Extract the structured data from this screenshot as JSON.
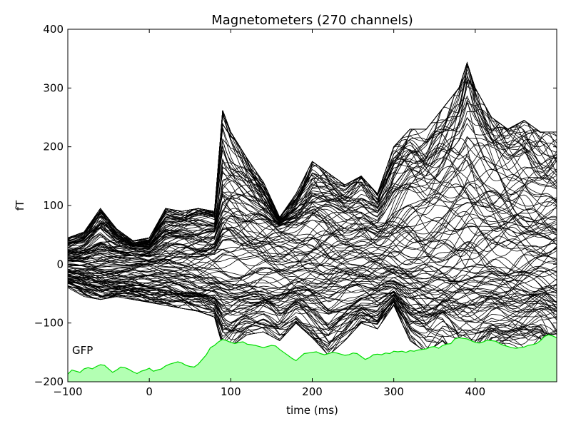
{
  "chart_data": {
    "type": "line",
    "title": "Magnetometers (270 channels)",
    "xlabel": "time (ms)",
    "ylabel": "fT",
    "xlim": [
      -100,
      500
    ],
    "ylim": [
      -200,
      400
    ],
    "xticks": [
      -100,
      0,
      100,
      200,
      300,
      400
    ],
    "yticks": [
      -200,
      -100,
      0,
      100,
      200,
      300,
      400
    ],
    "xtick_labels": [
      "−100",
      "0",
      "100",
      "200",
      "300",
      "400"
    ],
    "ytick_labels": [
      "−200",
      "−100",
      "0",
      "100",
      "200",
      "300",
      "400"
    ],
    "grid": false,
    "channel_count": 270,
    "channel_color": "#000000",
    "envelope": {
      "x": [
        -100,
        -80,
        -60,
        -40,
        -20,
        0,
        20,
        40,
        60,
        80,
        90,
        100,
        120,
        140,
        160,
        180,
        200,
        220,
        240,
        260,
        280,
        300,
        320,
        340,
        360,
        380,
        390,
        400,
        420,
        440,
        460,
        480,
        500
      ],
      "upper": [
        45,
        55,
        95,
        60,
        40,
        45,
        95,
        90,
        95,
        90,
        262,
        225,
        180,
        140,
        80,
        120,
        175,
        155,
        135,
        150,
        120,
        200,
        230,
        230,
        265,
        300,
        343,
        300,
        250,
        230,
        245,
        225,
        225
      ],
      "lower": [
        -40,
        -55,
        -60,
        -55,
        -60,
        -65,
        -70,
        -75,
        -80,
        -90,
        -140,
        -140,
        -120,
        -115,
        -130,
        -100,
        -125,
        -155,
        -130,
        -100,
        -110,
        -70,
        -130,
        -150,
        -130,
        -165,
        -165,
        -160,
        -135,
        -145,
        -150,
        -140,
        -170
      ],
      "mid_upper": [
        20,
        25,
        40,
        30,
        25,
        25,
        45,
        50,
        50,
        55,
        95,
        95,
        80,
        75,
        65,
        70,
        85,
        80,
        75,
        80,
        70,
        90,
        100,
        100,
        110,
        120,
        125,
        120,
        110,
        100,
        95,
        90,
        85
      ],
      "mid_lower": [
        -20,
        -25,
        -30,
        -30,
        -30,
        -35,
        -35,
        -40,
        -45,
        -50,
        -60,
        -65,
        -60,
        -55,
        -60,
        -55,
        -65,
        -75,
        -65,
        -55,
        -60,
        -45,
        -65,
        -75,
        -70,
        -80,
        -80,
        -80,
        -70,
        -75,
        -70,
        -65,
        -70
      ]
    },
    "gfp": {
      "label": "GFP",
      "color": "#00dd00",
      "fill": "#b3ffb3",
      "x": [
        -100,
        -95,
        -90,
        -85,
        -80,
        -75,
        -70,
        -65,
        -60,
        -55,
        -50,
        -45,
        -40,
        -35,
        -30,
        -25,
        -20,
        -15,
        -10,
        -5,
        0,
        5,
        10,
        15,
        20,
        25,
        30,
        35,
        40,
        45,
        50,
        55,
        60,
        65,
        70,
        75,
        80,
        85,
        90,
        95,
        100,
        105,
        110,
        115,
        120,
        125,
        130,
        135,
        140,
        145,
        150,
        155,
        160,
        165,
        170,
        175,
        180,
        185,
        190,
        195,
        200,
        205,
        210,
        215,
        220,
        225,
        230,
        235,
        240,
        245,
        250,
        255,
        260,
        265,
        270,
        275,
        280,
        285,
        290,
        295,
        300,
        305,
        310,
        315,
        320,
        325,
        330,
        335,
        340,
        345,
        350,
        355,
        360,
        365,
        370,
        375,
        380,
        385,
        390,
        395,
        400,
        405,
        410,
        415,
        420,
        425,
        430,
        435,
        440,
        445,
        450,
        455,
        460,
        465,
        470,
        475,
        480,
        485,
        490,
        495,
        500
      ],
      "values": [
        13,
        20,
        18,
        16,
        22,
        24,
        22,
        26,
        29,
        28,
        22,
        16,
        20,
        25,
        24,
        21,
        17,
        14,
        18,
        20,
        23,
        18,
        20,
        22,
        27,
        30,
        32,
        34,
        32,
        28,
        26,
        25,
        30,
        38,
        46,
        58,
        62,
        68,
        72,
        70,
        67,
        65,
        67,
        68,
        64,
        63,
        62,
        60,
        58,
        60,
        62,
        61,
        55,
        50,
        45,
        40,
        36,
        42,
        48,
        49,
        50,
        51,
        48,
        46,
        48,
        50,
        49,
        47,
        45,
        46,
        49,
        48,
        43,
        38,
        41,
        46,
        47,
        46,
        49,
        48,
        52,
        51,
        52,
        50,
        53,
        52,
        54,
        55,
        56,
        59,
        60,
        57,
        62,
        64,
        65,
        73,
        75,
        74,
        73,
        70,
        67,
        66,
        68,
        71,
        70,
        69,
        65,
        62,
        60,
        58,
        57,
        58,
        59,
        62,
        63,
        65,
        70,
        77,
        80,
        78,
        75
      ]
    }
  }
}
